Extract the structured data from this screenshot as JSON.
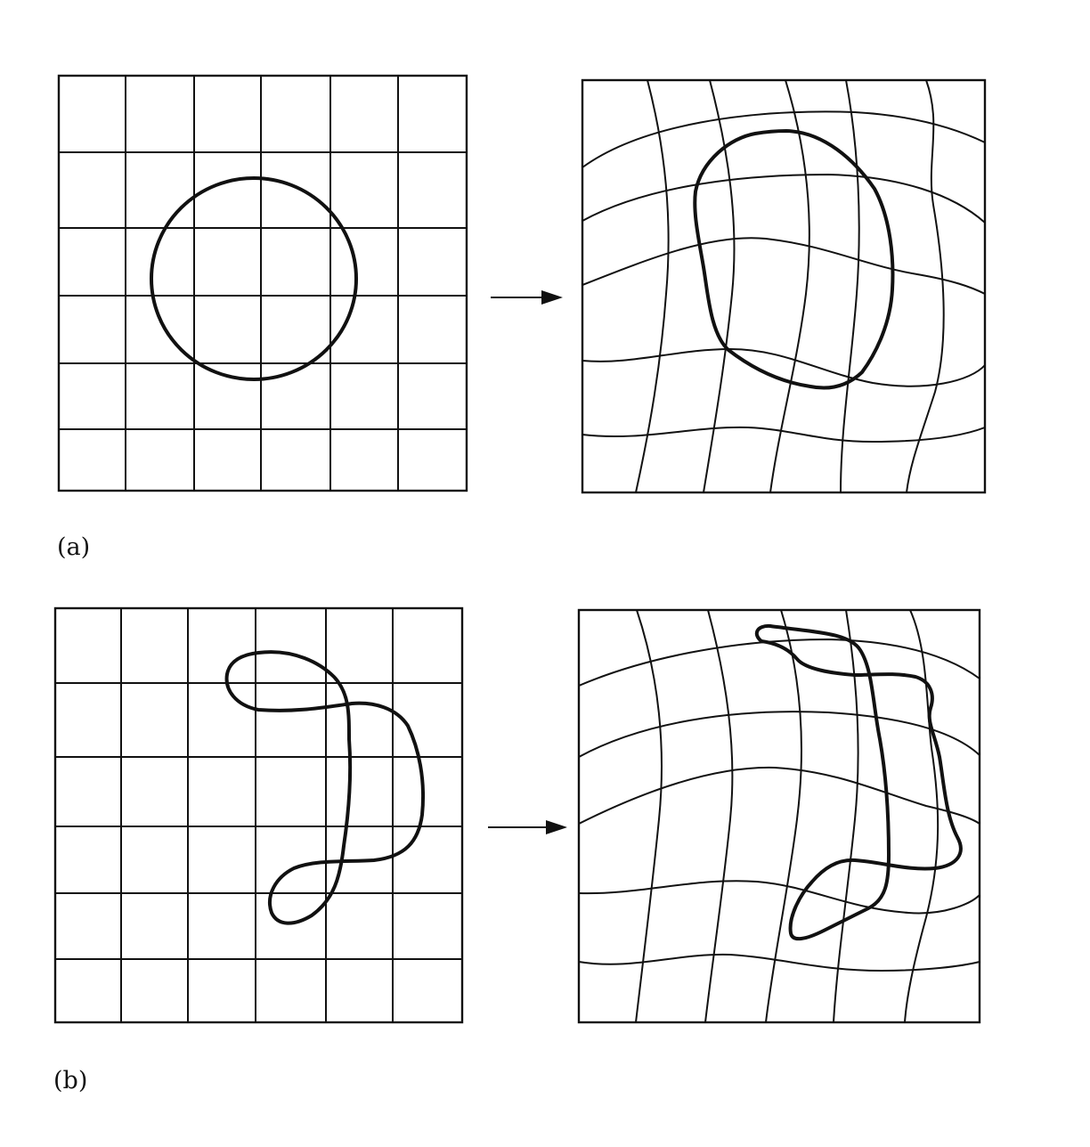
{
  "figure": {
    "colors": {
      "ink": "#111111",
      "background": "#ffffff"
    },
    "panels": [
      {
        "id": "a",
        "label": "(a)",
        "original_shape": "circle",
        "deformed_shape": "deformed-circle"
      },
      {
        "id": "b",
        "label": "(b)",
        "original_shape": "s-shaped-loop",
        "deformed_shape": "deformed-s-shaped-loop"
      }
    ]
  }
}
